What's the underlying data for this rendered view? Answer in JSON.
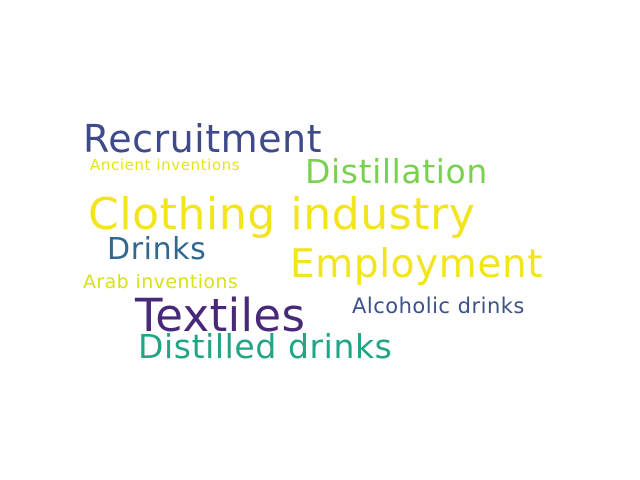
{
  "words": [
    {
      "text": "Recruitment",
      "color": "#3e4a89"
    },
    {
      "text": "Ancient inventions",
      "color": "#e6e419"
    },
    {
      "text": "Distillation",
      "color": "#7ad151"
    },
    {
      "text": "Clothing industry",
      "color": "#f2e51d"
    },
    {
      "text": "Drinks",
      "color": "#31688e"
    },
    {
      "text": "Employment",
      "color": "#f1e51d"
    },
    {
      "text": "Arab inventions",
      "color": "#d8e219"
    },
    {
      "text": "Textiles",
      "color": "#482878"
    },
    {
      "text": "Alcoholic drinks",
      "color": "#3b528b"
    },
    {
      "text": "Distilled drinks",
      "color": "#21a585"
    }
  ]
}
